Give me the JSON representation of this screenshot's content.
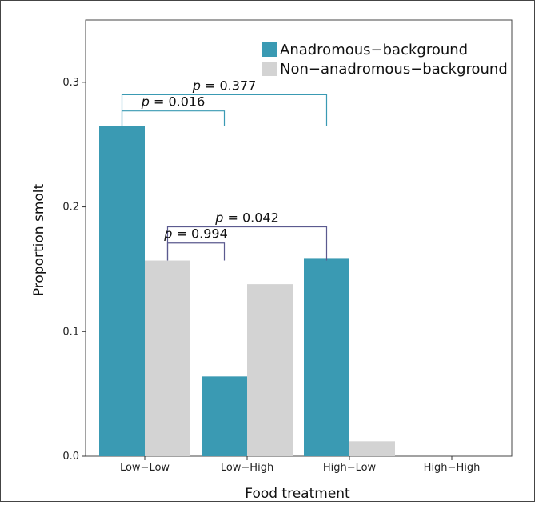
{
  "chart_data": {
    "type": "bar",
    "title": "",
    "xlabel": "Food treatment",
    "ylabel": "Proportion smolt",
    "categories": [
      "Low−Low",
      "Low−High",
      "High−Low",
      "High−High"
    ],
    "series": [
      {
        "name": "Anadromous−background",
        "color": "#3a9ab3",
        "values": [
          0.265,
          0.064,
          0.159,
          0.0
        ]
      },
      {
        "name": "Non−anadromous−background",
        "color": "#d3d3d3",
        "values": [
          0.157,
          0.138,
          0.012,
          0.0
        ]
      }
    ],
    "ylim": [
      0,
      0.35
    ],
    "yticks": [
      0.0,
      0.1,
      0.2,
      0.3
    ],
    "ytick_labels": [
      "0.0",
      "0.1",
      "0.2",
      "0.3"
    ],
    "grid": false,
    "legend_position": "top-right",
    "annotations": [
      {
        "p_symbol": "p",
        "p_value": "= 0.377",
        "color": "#3a9ab3",
        "from": {
          "category": 0,
          "series": 0
        },
        "to": {
          "category": 2,
          "series": 0
        },
        "y": 0.29,
        "drop_to": [
          0.265,
          0.265
        ]
      },
      {
        "p_symbol": "p",
        "p_value": "= 0.016",
        "color": "#3a9ab3",
        "from": {
          "category": 0,
          "series": 0
        },
        "to": {
          "category": 1,
          "series": 0
        },
        "y": 0.277,
        "drop_to": [
          0.265,
          0.265
        ]
      },
      {
        "p_symbol": "p",
        "p_value": "= 0.042",
        "color": "#5b5a8f",
        "from": {
          "category": 0,
          "series": 1
        },
        "to": {
          "category": 2,
          "series": 0
        },
        "y": 0.184,
        "drop_to": [
          0.157,
          0.157
        ]
      },
      {
        "p_symbol": "p",
        "p_value": "= 0.994",
        "color": "#5b5a8f",
        "from": {
          "category": 0,
          "series": 1
        },
        "to": {
          "category": 1,
          "series": 0
        },
        "y": 0.171,
        "drop_to": [
          0.157,
          0.157
        ]
      }
    ]
  }
}
